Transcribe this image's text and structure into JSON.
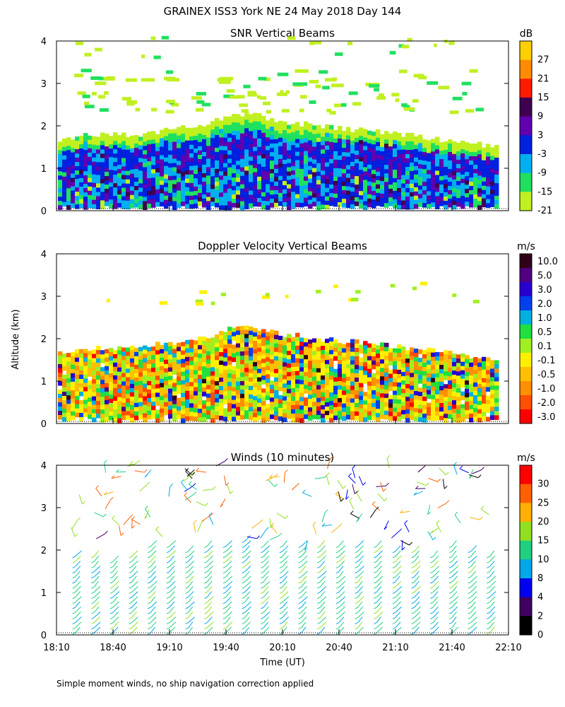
{
  "figure_title": "GRAINEX ISS3 York NE  24 May 2018 Day 144",
  "y_axis_label": "Altitude (km)",
  "x_axis_label": "Time (UT)",
  "footnote": "Simple moment winds, no ship navigation correction applied",
  "x_ticks": [
    "18:10",
    "18:40",
    "19:10",
    "19:40",
    "20:10",
    "20:40",
    "21:10",
    "21:40",
    "22:10"
  ],
  "y_ticks": [
    "0",
    "1",
    "2",
    "3",
    "4"
  ],
  "chart_data": [
    {
      "type": "heatmap",
      "title": "SNR Vertical Beams",
      "colorbar_unit": "dB",
      "colorbar_labels": [
        "27",
        "21",
        "15",
        "9",
        "3",
        "-3",
        "-9",
        "-15",
        "-21"
      ],
      "colorbar_colors": [
        "#ffd000",
        "#ff8c00",
        "#ff1a00",
        "#400050",
        "#6000b0",
        "#0020e0",
        "#00b0f0",
        "#20e060",
        "#c0f020"
      ],
      "x_range": [
        "18:10",
        "22:10"
      ],
      "ylim": [
        0,
        4
      ],
      "echo_top_km": [
        [
          "18:10",
          1.7
        ],
        [
          "18:30",
          1.8
        ],
        [
          "18:50",
          1.8
        ],
        [
          "19:10",
          1.9
        ],
        [
          "19:25",
          2.0
        ],
        [
          "19:40",
          2.2
        ],
        [
          "19:50",
          2.3
        ],
        [
          "20:10",
          2.1
        ],
        [
          "20:30",
          2.0
        ],
        [
          "20:50",
          1.9
        ],
        [
          "21:10",
          1.8
        ],
        [
          "21:30",
          1.7
        ],
        [
          "21:50",
          1.6
        ],
        [
          "22:05",
          1.5
        ]
      ],
      "upper_layer_km": [
        3.0,
        3.3
      ]
    },
    {
      "type": "heatmap",
      "title": "Doppler Velocity Vertical Beams",
      "colorbar_unit": "m/s",
      "colorbar_labels": [
        "10.0",
        "5.0",
        "3.0",
        "2.0",
        "1.0",
        "0.5",
        "0.1",
        "-0.1",
        "-0.5",
        "-1.0",
        "-2.0",
        "-3.0"
      ],
      "colorbar_colors": [
        "#300018",
        "#500080",
        "#2800d0",
        "#0040f0",
        "#00b0e0",
        "#20e040",
        "#a0f020",
        "#fff000",
        "#ffc000",
        "#ff9000",
        "#ff5000",
        "#ff0000"
      ],
      "x_range": [
        "18:10",
        "22:10"
      ],
      "ylim": [
        0,
        4
      ],
      "echo_top_km": [
        [
          "18:10",
          1.7
        ],
        [
          "18:30",
          1.8
        ],
        [
          "18:50",
          1.8
        ],
        [
          "19:10",
          1.9
        ],
        [
          "19:25",
          2.0
        ],
        [
          "19:40",
          2.2
        ],
        [
          "19:50",
          2.3
        ],
        [
          "20:10",
          2.1
        ],
        [
          "20:30",
          2.0
        ],
        [
          "20:50",
          1.9
        ],
        [
          "21:10",
          1.8
        ],
        [
          "21:30",
          1.7
        ],
        [
          "21:50",
          1.6
        ],
        [
          "22:05",
          1.5
        ]
      ]
    },
    {
      "type": "scatter",
      "title": "Winds (10 minutes)",
      "colorbar_unit": "m/s",
      "colorbar_labels": [
        "30",
        "25",
        "20",
        "15",
        "10",
        "8",
        "4",
        "2",
        "0"
      ],
      "colorbar_colors": [
        "#ff0000",
        "#ff6000",
        "#ffb000",
        "#90e020",
        "#20d080",
        "#00a8e8",
        "#0000f0",
        "#400060",
        "#000000"
      ],
      "x_range": [
        "18:10",
        "22:10"
      ],
      "ylim": [
        0,
        4
      ],
      "profile_times": [
        "18:20",
        "18:30",
        "18:40",
        "18:50",
        "19:00",
        "19:10",
        "19:20",
        "19:30",
        "19:40",
        "19:50",
        "20:00",
        "20:10",
        "20:20",
        "20:30",
        "20:40",
        "20:50",
        "21:00",
        "21:10",
        "21:20",
        "21:30",
        "21:40",
        "21:50",
        "22:00"
      ],
      "profile_top_km": [
        1.9,
        1.9,
        1.8,
        1.9,
        2.1,
        2.1,
        2.0,
        2.2,
        2.1,
        2.3,
        2.1,
        2.2,
        2.1,
        2.2,
        2.1,
        2.2,
        2.1,
        2.0,
        2.0,
        1.9,
        2.1,
        2.0,
        1.9
      ]
    }
  ]
}
